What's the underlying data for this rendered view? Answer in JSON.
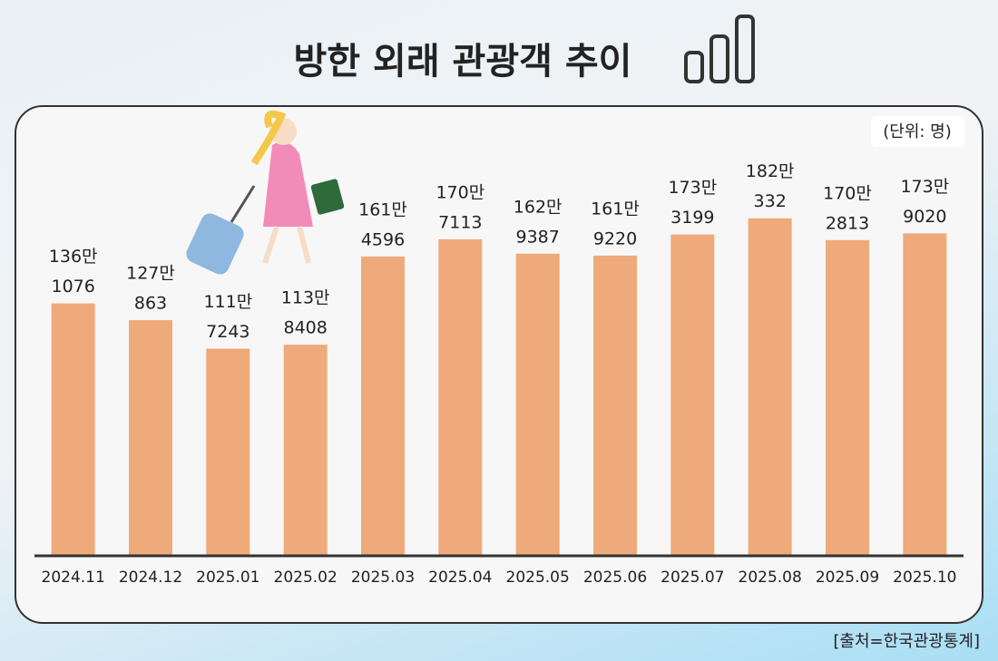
{
  "chart_data": {
    "type": "bar",
    "title": "방한 외래 관광객 추이",
    "unit_note": "(단위: 명)",
    "source": "[출처=한국관광통계]",
    "categories": [
      "2024.11",
      "2024.12",
      "2025.01",
      "2025.02",
      "2025.03",
      "2025.04",
      "2025.05",
      "2025.06",
      "2025.07",
      "2025.08",
      "2025.09",
      "2025.10"
    ],
    "values": [
      1361076,
      1270863,
      1117243,
      1138408,
      1614596,
      1707113,
      1629387,
      1619220,
      1733199,
      1820332,
      1702813,
      1739020
    ],
    "value_labels": [
      [
        "136만",
        "1076"
      ],
      [
        "127만",
        "863"
      ],
      [
        "111만",
        "7243"
      ],
      [
        "113만",
        "8408"
      ],
      [
        "161만",
        "4596"
      ],
      [
        "170만",
        "7113"
      ],
      [
        "162만",
        "9387"
      ],
      [
        "161만",
        "9220"
      ],
      [
        "173만",
        "3199"
      ],
      [
        "182만",
        "332"
      ],
      [
        "170만",
        "2813"
      ],
      [
        "173만",
        "9020"
      ]
    ],
    "color": "#eeaa7a",
    "ylim": [
      0,
      2000000
    ]
  }
}
